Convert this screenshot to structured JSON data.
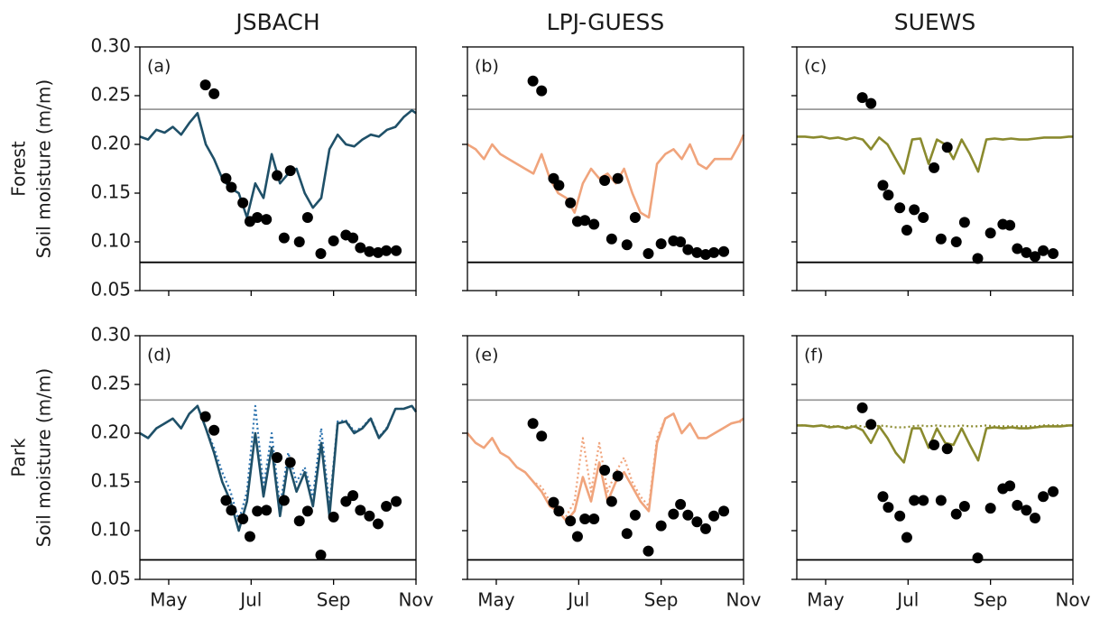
{
  "chart_data": {
    "type": "line",
    "columns": [
      "JSBACH",
      "LPJ-GUESS",
      "SUEWS"
    ],
    "rows": [
      "Forest",
      "Park"
    ],
    "ylabel": "Soil moisture (m/m)",
    "xlim": [
      4.3,
      11.0
    ],
    "xticks": [
      {
        "value": 5,
        "label": "May"
      },
      {
        "value": 7,
        "label": "Jul"
      },
      {
        "value": 9,
        "label": "Sep"
      },
      {
        "value": 11,
        "label": "Nov"
      }
    ],
    "ylim": [
      0.05,
      0.3
    ],
    "yticks": [
      0.05,
      {
        "value": 0.1,
        "label": "0.10"
      },
      0.15,
      {
        "value": 0.2,
        "label": "0.20"
      },
      0.25,
      {
        "value": 0.3,
        "label": "0.30"
      }
    ],
    "x": [
      4.3,
      4.5,
      4.7,
      4.9,
      5.1,
      5.3,
      5.5,
      5.7,
      5.9,
      6.1,
      6.3,
      6.5,
      6.7,
      6.9,
      7.1,
      7.3,
      7.5,
      7.7,
      7.9,
      8.1,
      8.3,
      8.5,
      8.7,
      8.9,
      9.1,
      9.3,
      9.5,
      9.7,
      9.9,
      10.1,
      10.3,
      10.5,
      10.7,
      10.9,
      11.0
    ],
    "obs_x": [
      5.89,
      6.1,
      6.39,
      6.52,
      6.8,
      6.97,
      7.15,
      7.37,
      7.63,
      7.8,
      7.95,
      8.17,
      8.37,
      8.69,
      9.0,
      9.3,
      9.47,
      9.65,
      9.87,
      10.08,
      10.28,
      10.52
    ],
    "panels": [
      {
        "label": "(a)",
        "hlines": [
          {
            "value": 0.236,
            "color": "#9a9a9a"
          },
          {
            "value": 0.079,
            "color": "#000000"
          }
        ],
        "series": [
          {
            "color": "#1f5068",
            "dash": false,
            "values": [
              0.208,
              0.205,
              0.215,
              0.212,
              0.218,
              0.21,
              0.222,
              0.232,
              0.2,
              0.185,
              0.165,
              0.155,
              0.15,
              0.125,
              0.16,
              0.145,
              0.19,
              0.16,
              0.17,
              0.175,
              0.15,
              0.135,
              0.145,
              0.195,
              0.21,
              0.2,
              0.198,
              0.205,
              0.21,
              0.208,
              0.215,
              0.218,
              0.228,
              0.235,
              0.232
            ]
          }
        ],
        "points": {
          "color": "#000000",
          "values": [
            0.261,
            0.252,
            0.165,
            0.156,
            0.14,
            0.121,
            0.125,
            0.123,
            0.168,
            0.104,
            0.173,
            0.1,
            0.125,
            0.088,
            0.101,
            0.107,
            0.104,
            0.094,
            0.09,
            0.089,
            0.091,
            0.091
          ]
        }
      },
      {
        "label": "(b)",
        "hlines": [
          {
            "value": 0.236,
            "color": "#9a9a9a"
          },
          {
            "value": 0.079,
            "color": "#000000"
          }
        ],
        "series": [
          {
            "color": "#f0a47c",
            "dash": false,
            "values": [
              0.2,
              0.195,
              0.185,
              0.2,
              0.19,
              0.185,
              0.18,
              0.175,
              0.17,
              0.19,
              0.165,
              0.15,
              0.145,
              0.13,
              0.16,
              0.175,
              0.165,
              0.17,
              0.16,
              0.175,
              0.15,
              0.13,
              0.125,
              0.18,
              0.19,
              0.195,
              0.185,
              0.2,
              0.18,
              0.175,
              0.185,
              0.185,
              0.185,
              0.2,
              0.21
            ]
          }
        ],
        "points": {
          "color": "#000000",
          "values": [
            0.265,
            0.255,
            0.165,
            0.158,
            0.14,
            0.121,
            0.122,
            0.118,
            0.163,
            0.103,
            0.165,
            0.097,
            0.125,
            0.088,
            0.098,
            0.101,
            0.1,
            0.092,
            0.089,
            0.087,
            0.089,
            0.09
          ]
        }
      },
      {
        "label": "(c)",
        "hlines": [
          {
            "value": 0.236,
            "color": "#9a9a9a"
          },
          {
            "value": 0.079,
            "color": "#000000"
          }
        ],
        "series": [
          {
            "color": "#8a8a2e",
            "dash": false,
            "values": [
              0.208,
              0.208,
              0.207,
              0.208,
              0.206,
              0.207,
              0.205,
              0.207,
              0.205,
              0.195,
              0.207,
              0.2,
              0.185,
              0.17,
              0.205,
              0.206,
              0.18,
              0.205,
              0.2,
              0.185,
              0.205,
              0.19,
              0.172,
              0.205,
              0.206,
              0.205,
              0.206,
              0.205,
              0.205,
              0.206,
              0.207,
              0.207,
              0.207,
              0.208,
              0.208
            ]
          }
        ],
        "points": {
          "color": "#000000",
          "values": [
            0.248,
            0.242,
            0.158,
            0.148,
            0.135,
            0.112,
            0.133,
            0.125,
            0.176,
            0.103,
            0.197,
            0.1,
            0.12,
            0.083,
            0.109,
            0.118,
            0.117,
            0.093,
            0.089,
            0.085,
            0.091,
            0.088
          ]
        }
      },
      {
        "label": "(d)",
        "hlines": [
          {
            "value": 0.234,
            "color": "#9a9a9a"
          },
          {
            "value": 0.07,
            "color": "#000000"
          }
        ],
        "series": [
          {
            "color": "#2e74b0",
            "dash": true,
            "values": [
              0.2,
              0.195,
              0.205,
              0.21,
              0.215,
              0.205,
              0.22,
              0.228,
              0.205,
              0.185,
              0.16,
              0.14,
              0.11,
              0.14,
              0.228,
              0.145,
              0.2,
              0.125,
              0.18,
              0.15,
              0.165,
              0.135,
              0.205,
              0.125,
              0.212,
              0.213,
              0.202,
              0.206,
              0.216,
              0.196,
              0.206,
              0.225,
              0.225,
              0.228,
              0.222
            ]
          },
          {
            "color": "#1f5068",
            "dash": false,
            "values": [
              0.2,
              0.195,
              0.205,
              0.21,
              0.215,
              0.205,
              0.22,
              0.228,
              0.205,
              0.18,
              0.15,
              0.13,
              0.1,
              0.13,
              0.2,
              0.135,
              0.185,
              0.115,
              0.17,
              0.14,
              0.16,
              0.125,
              0.19,
              0.115,
              0.21,
              0.212,
              0.2,
              0.205,
              0.215,
              0.195,
              0.205,
              0.225,
              0.225,
              0.228,
              0.222
            ]
          }
        ],
        "points": {
          "color": "#000000",
          "values": [
            0.217,
            0.203,
            0.131,
            0.121,
            0.112,
            0.094,
            0.12,
            0.121,
            0.175,
            0.131,
            0.17,
            0.11,
            0.12,
            0.075,
            0.114,
            0.13,
            0.136,
            0.121,
            0.115,
            0.107,
            0.125,
            0.13
          ]
        }
      },
      {
        "label": "(e)",
        "hlines": [
          {
            "value": 0.234,
            "color": "#9a9a9a"
          },
          {
            "value": 0.07,
            "color": "#000000"
          }
        ],
        "series": [
          {
            "color": "#f0a47c",
            "dash": true,
            "values": [
              0.2,
              0.19,
              0.185,
              0.195,
              0.18,
              0.175,
              0.165,
              0.16,
              0.15,
              0.145,
              0.13,
              0.125,
              0.115,
              0.13,
              0.195,
              0.14,
              0.19,
              0.14,
              0.16,
              0.175,
              0.15,
              0.135,
              0.125,
              0.195,
              0.215,
              0.22,
              0.2,
              0.21,
              0.195,
              0.195,
              0.2,
              0.205,
              0.21,
              0.212,
              0.21
            ]
          },
          {
            "color": "#f0a47c",
            "dash": false,
            "values": [
              0.2,
              0.19,
              0.185,
              0.195,
              0.18,
              0.175,
              0.165,
              0.16,
              0.15,
              0.14,
              0.125,
              0.12,
              0.11,
              0.12,
              0.155,
              0.13,
              0.17,
              0.13,
              0.15,
              0.16,
              0.145,
              0.13,
              0.12,
              0.19,
              0.215,
              0.22,
              0.2,
              0.21,
              0.195,
              0.195,
              0.2,
              0.205,
              0.21,
              0.212,
              0.215
            ]
          }
        ],
        "points": {
          "color": "#000000",
          "values": [
            0.21,
            0.197,
            0.129,
            0.12,
            0.11,
            0.094,
            0.112,
            0.112,
            0.162,
            0.13,
            0.156,
            0.097,
            0.116,
            0.079,
            0.105,
            0.117,
            0.127,
            0.116,
            0.109,
            0.102,
            0.115,
            0.12
          ]
        }
      },
      {
        "label": "(f)",
        "hlines": [
          {
            "value": 0.234,
            "color": "#9a9a9a"
          },
          {
            "value": 0.07,
            "color": "#000000"
          }
        ],
        "series": [
          {
            "color": "#8a8a2e",
            "dash": true,
            "values": [
              0.208,
              0.208,
              0.207,
              0.208,
              0.207,
              0.207,
              0.206,
              0.208,
              0.207,
              0.205,
              0.208,
              0.207,
              0.206,
              0.206,
              0.207,
              0.208,
              0.207,
              0.208,
              0.207,
              0.207,
              0.208,
              0.207,
              0.207,
              0.208,
              0.207,
              0.207,
              0.207,
              0.207,
              0.207,
              0.207,
              0.208,
              0.208,
              0.208,
              0.208,
              0.208
            ]
          },
          {
            "color": "#8a8a2e",
            "dash": false,
            "values": [
              0.208,
              0.208,
              0.207,
              0.208,
              0.206,
              0.207,
              0.205,
              0.207,
              0.203,
              0.19,
              0.207,
              0.195,
              0.18,
              0.17,
              0.205,
              0.205,
              0.185,
              0.205,
              0.19,
              0.188,
              0.205,
              0.188,
              0.172,
              0.205,
              0.206,
              0.205,
              0.206,
              0.205,
              0.205,
              0.206,
              0.207,
              0.207,
              0.207,
              0.208,
              0.208
            ]
          }
        ],
        "points": {
          "color": "#000000",
          "values": [
            0.226,
            0.209,
            0.135,
            0.124,
            0.115,
            0.093,
            0.131,
            0.131,
            0.188,
            0.131,
            0.184,
            0.117,
            0.125,
            0.072,
            0.123,
            0.143,
            0.146,
            0.126,
            0.121,
            0.113,
            0.135,
            0.14
          ]
        }
      }
    ]
  }
}
